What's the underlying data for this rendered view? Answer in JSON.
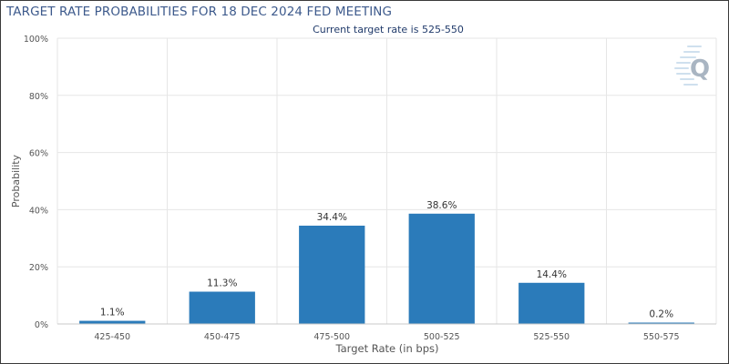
{
  "header": {
    "title": "TARGET RATE PROBABILITIES FOR 18 DEC 2024 FED MEETING",
    "subtitle": "Current target rate is 525-550"
  },
  "logo": {
    "icon": "quikstrike-q-logo-icon",
    "letter": "Q"
  },
  "colors": {
    "bar": "#2b7bba",
    "title": "#3d5a8c",
    "subtitle": "#213b6b",
    "grid": "#e6e6e6",
    "axis_text": "#555555"
  },
  "chart_data": {
    "type": "bar",
    "title": "TARGET RATE PROBABILITIES FOR 18 DEC 2024 FED MEETING",
    "subtitle": "Current target rate is 525-550",
    "xlabel": "Target Rate (in bps)",
    "ylabel": "Probability",
    "categories": [
      "425-450",
      "450-475",
      "475-500",
      "500-525",
      "525-550",
      "550-575"
    ],
    "values": [
      1.1,
      11.3,
      34.4,
      38.6,
      14.4,
      0.2
    ],
    "data_labels": [
      "1.1%",
      "11.3%",
      "34.4%",
      "38.6%",
      "14.4%",
      "0.2%"
    ],
    "ylim": [
      0,
      100
    ],
    "yticks": [
      0,
      20,
      40,
      60,
      80,
      100
    ],
    "ytick_labels": [
      "0%",
      "20%",
      "40%",
      "60%",
      "80%",
      "100%"
    ],
    "grid": true,
    "legend": "none"
  }
}
